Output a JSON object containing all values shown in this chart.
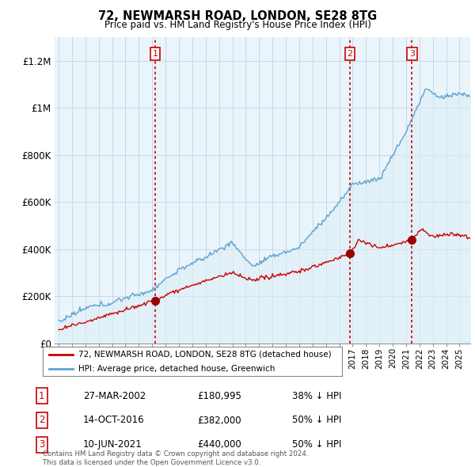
{
  "title": "72, NEWMARSH ROAD, LONDON, SE28 8TG",
  "subtitle": "Price paid vs. HM Land Registry's House Price Index (HPI)",
  "ylabel_ticks": [
    "£0",
    "£200K",
    "£400K",
    "£600K",
    "£800K",
    "£1M",
    "£1.2M"
  ],
  "ytick_values": [
    0,
    200000,
    400000,
    600000,
    800000,
    1000000,
    1200000
  ],
  "ylim": [
    0,
    1300000
  ],
  "xlim_start": 1994.7,
  "xlim_end": 2025.8,
  "sale_dates": [
    2002.23,
    2016.79,
    2021.44
  ],
  "sale_prices": [
    180995,
    382000,
    440000
  ],
  "sale_labels": [
    "1",
    "2",
    "3"
  ],
  "vline_color": "#cc0000",
  "hpi_color": "#5ba3d0",
  "hpi_fill_color": "#ddeef7",
  "sale_color": "#cc0000",
  "legend_entries": [
    "72, NEWMARSH ROAD, LONDON, SE28 8TG (detached house)",
    "HPI: Average price, detached house, Greenwich"
  ],
  "table_data": [
    [
      "1",
      "27-MAR-2002",
      "£180,995",
      "38% ↓ HPI"
    ],
    [
      "2",
      "14-OCT-2016",
      "£382,000",
      "50% ↓ HPI"
    ],
    [
      "3",
      "10-JUN-2021",
      "£440,000",
      "50% ↓ HPI"
    ]
  ],
  "footnote": "Contains HM Land Registry data © Crown copyright and database right 2024.\nThis data is licensed under the Open Government Licence v3.0.",
  "background_color": "#ffffff",
  "chart_bg_color": "#eaf4fb",
  "grid_color": "#c8d8e8"
}
